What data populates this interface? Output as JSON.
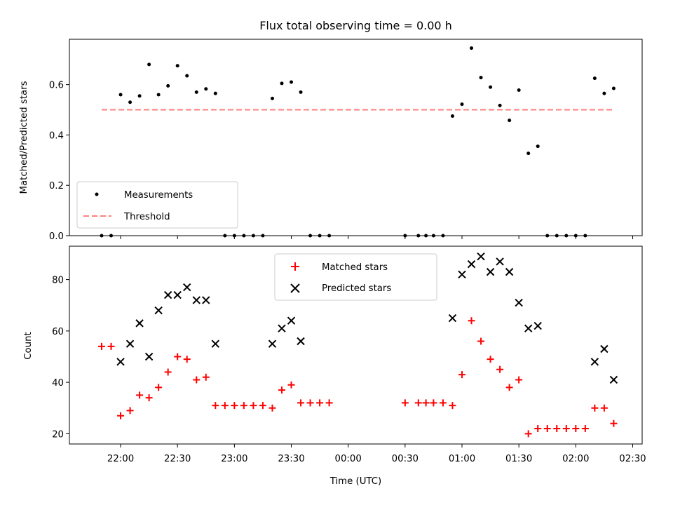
{
  "chart_data": [
    {
      "type": "scatter",
      "title": "Flux total observing time = 0.00 h",
      "xlabel": "",
      "ylabel": "Matched/Predicted stars",
      "ylim": [
        0,
        0.78
      ],
      "yticks": [
        0.0,
        0.2,
        0.4,
        0.6
      ],
      "ytick_labels": [
        "0.0",
        "0.2",
        "0.4",
        "0.6"
      ],
      "legend_placement": "lower-left",
      "series": [
        {
          "name": "Measurements",
          "marker": "dot",
          "color": "#000000",
          "points": [
            [
              "21:50",
              0.0
            ],
            [
              "21:55",
              0.0
            ],
            [
              "22:00",
              0.56
            ],
            [
              "22:05",
              0.53
            ],
            [
              "22:10",
              0.555
            ],
            [
              "22:15",
              0.68
            ],
            [
              "22:20",
              0.56
            ],
            [
              "22:25",
              0.595
            ],
            [
              "22:30",
              0.675
            ],
            [
              "22:35",
              0.635
            ],
            [
              "22:40",
              0.57
            ],
            [
              "22:45",
              0.583
            ],
            [
              "22:50",
              0.565
            ],
            [
              "22:55",
              0.0
            ],
            [
              "23:00",
              0.0
            ],
            [
              "23:05",
              0.0
            ],
            [
              "23:10",
              0.0
            ],
            [
              "23:15",
              0.0
            ],
            [
              "23:20",
              0.545
            ],
            [
              "23:25",
              0.605
            ],
            [
              "23:30",
              0.61
            ],
            [
              "23:35",
              0.57
            ],
            [
              "23:40",
              0.0
            ],
            [
              "23:45",
              0.0
            ],
            [
              "23:50",
              0.0
            ],
            [
              "00:30",
              0.0
            ],
            [
              "00:37",
              0.0
            ],
            [
              "00:41",
              0.0
            ],
            [
              "00:45",
              0.0
            ],
            [
              "00:50",
              0.0
            ],
            [
              "00:55",
              0.475
            ],
            [
              "01:00",
              0.522
            ],
            [
              "01:05",
              0.745
            ],
            [
              "01:10",
              0.628
            ],
            [
              "01:15",
              0.59
            ],
            [
              "01:20",
              0.517
            ],
            [
              "01:25",
              0.458
            ],
            [
              "01:30",
              0.578
            ],
            [
              "01:35",
              0.327
            ],
            [
              "01:40",
              0.355
            ],
            [
              "01:45",
              0.0
            ],
            [
              "01:50",
              0.0
            ],
            [
              "01:55",
              0.0
            ],
            [
              "02:00",
              0.0
            ],
            [
              "02:05",
              0.0
            ],
            [
              "02:10",
              0.625
            ],
            [
              "02:15",
              0.565
            ],
            [
              "02:20",
              0.585
            ]
          ]
        },
        {
          "name": "Threshold",
          "marker": "dashed-line",
          "color": "#ff7f7f",
          "points": [
            [
              "21:50",
              0.5
            ],
            [
              "02:20",
              0.5
            ]
          ]
        }
      ]
    },
    {
      "type": "scatter",
      "title": "",
      "xlabel": "Time (UTC)",
      "ylabel": "Count",
      "ylim": [
        16,
        93
      ],
      "yticks": [
        20,
        40,
        60,
        80
      ],
      "ytick_labels": [
        "20",
        "40",
        "60",
        "80"
      ],
      "x_ticks": [
        "22:00",
        "22:30",
        "23:00",
        "23:30",
        "00:00",
        "00:30",
        "01:00",
        "01:30",
        "02:00",
        "02:30"
      ],
      "legend_placement": "upper-center",
      "series": [
        {
          "name": "Matched stars",
          "marker": "plus",
          "color": "#ff0000",
          "points": [
            [
              "21:50",
              54
            ],
            [
              "21:55",
              54
            ],
            [
              "22:00",
              27
            ],
            [
              "22:05",
              29
            ],
            [
              "22:10",
              35
            ],
            [
              "22:15",
              34
            ],
            [
              "22:20",
              38
            ],
            [
              "22:25",
              44
            ],
            [
              "22:30",
              50
            ],
            [
              "22:35",
              49
            ],
            [
              "22:40",
              41
            ],
            [
              "22:45",
              42
            ],
            [
              "22:50",
              31
            ],
            [
              "22:55",
              31
            ],
            [
              "23:00",
              31
            ],
            [
              "23:05",
              31
            ],
            [
              "23:10",
              31
            ],
            [
              "23:15",
              31
            ],
            [
              "23:20",
              30
            ],
            [
              "23:25",
              37
            ],
            [
              "23:30",
              39
            ],
            [
              "23:35",
              32
            ],
            [
              "23:40",
              32
            ],
            [
              "23:45",
              32
            ],
            [
              "23:50",
              32
            ],
            [
              "00:30",
              32
            ],
            [
              "00:37",
              32
            ],
            [
              "00:41",
              32
            ],
            [
              "00:45",
              32
            ],
            [
              "00:50",
              32
            ],
            [
              "00:55",
              31
            ],
            [
              "01:00",
              43
            ],
            [
              "01:05",
              64
            ],
            [
              "01:10",
              56
            ],
            [
              "01:15",
              49
            ],
            [
              "01:20",
              45
            ],
            [
              "01:25",
              38
            ],
            [
              "01:30",
              41
            ],
            [
              "01:35",
              20
            ],
            [
              "01:40",
              22
            ],
            [
              "01:45",
              22
            ],
            [
              "01:50",
              22
            ],
            [
              "01:55",
              22
            ],
            [
              "02:00",
              22
            ],
            [
              "02:05",
              22
            ],
            [
              "02:10",
              30
            ],
            [
              "02:15",
              30
            ],
            [
              "02:20",
              24
            ]
          ]
        },
        {
          "name": "Predicted stars",
          "marker": "x",
          "color": "#000000",
          "points": [
            [
              "22:00",
              48
            ],
            [
              "22:05",
              55
            ],
            [
              "22:10",
              63
            ],
            [
              "22:15",
              50
            ],
            [
              "22:20",
              68
            ],
            [
              "22:25",
              74
            ],
            [
              "22:30",
              74
            ],
            [
              "22:35",
              77
            ],
            [
              "22:40",
              72
            ],
            [
              "22:45",
              72
            ],
            [
              "22:50",
              55
            ],
            [
              "23:20",
              55
            ],
            [
              "23:25",
              61
            ],
            [
              "23:30",
              64
            ],
            [
              "23:35",
              56
            ],
            [
              "00:55",
              65
            ],
            [
              "01:00",
              82
            ],
            [
              "01:05",
              86
            ],
            [
              "01:10",
              89
            ],
            [
              "01:15",
              83
            ],
            [
              "01:20",
              87
            ],
            [
              "01:25",
              83
            ],
            [
              "01:30",
              71
            ],
            [
              "01:35",
              61
            ],
            [
              "01:40",
              62
            ],
            [
              "02:10",
              48
            ],
            [
              "02:15",
              53
            ],
            [
              "02:20",
              41
            ]
          ]
        }
      ]
    }
  ]
}
